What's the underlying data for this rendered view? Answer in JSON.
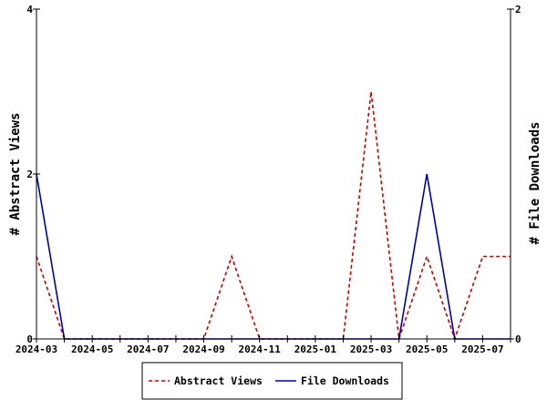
{
  "chart_data": {
    "type": "line",
    "x": [
      "2024-03",
      "2024-04",
      "2024-05",
      "2024-06",
      "2024-07",
      "2024-08",
      "2024-09",
      "2024-10",
      "2024-11",
      "2024-12",
      "2025-01",
      "2025-02",
      "2025-03",
      "2025-04",
      "2025-05",
      "2025-06",
      "2025-07",
      "2025-08"
    ],
    "x_tick_labels": [
      "2024-03",
      "2024-05",
      "2024-07",
      "2024-09",
      "2024-11",
      "2025-01",
      "2025-03",
      "2025-05",
      "2025-07"
    ],
    "series": [
      {
        "name": "Abstract Views",
        "axis": "left",
        "color": "#cc0000",
        "style": "dashed",
        "values": [
          1,
          0,
          0,
          0,
          0,
          0,
          0,
          1,
          0,
          0,
          0,
          0,
          3,
          0,
          1,
          0,
          1,
          1
        ]
      },
      {
        "name": "File Downloads",
        "axis": "right",
        "color": "#0000aa",
        "style": "solid",
        "values": [
          1,
          0,
          0,
          0,
          0,
          0,
          0,
          0,
          0,
          0,
          0,
          0,
          0,
          0,
          1,
          0,
          0,
          0
        ]
      }
    ],
    "ylabel": "# Abstract Views",
    "y2label": "# File Downloads",
    "ylim": [
      0,
      4
    ],
    "y_ticks": [
      "0",
      "2",
      "4"
    ],
    "y2lim": [
      0,
      2
    ],
    "y2_ticks": [
      "0",
      "2"
    ],
    "grid": false,
    "legend_position": "bottom"
  }
}
